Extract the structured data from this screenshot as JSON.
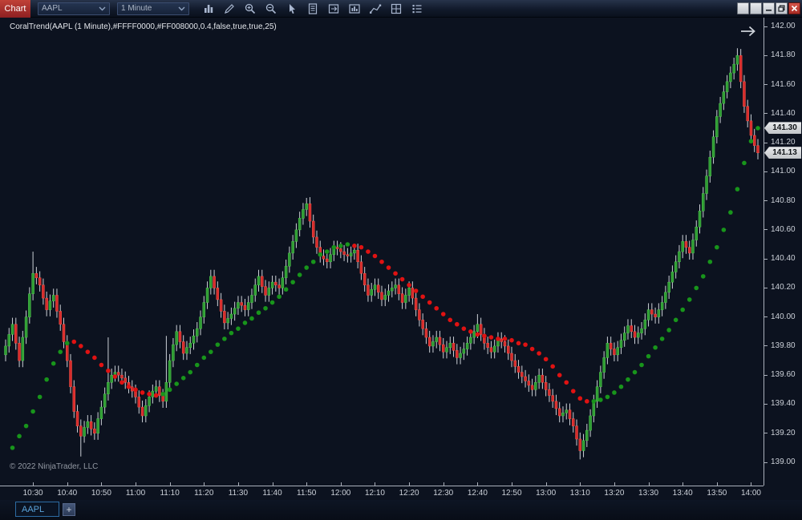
{
  "toolbar": {
    "chart_button_label": "Chart",
    "instrument_value": "AAPL",
    "interval_value": "1 Minute",
    "icons": [
      "bar-type",
      "drawing-tools",
      "zoom-in",
      "zoom-out",
      "cursor",
      "report",
      "chart-trader",
      "chart-window",
      "line-study",
      "properties-grid",
      "list"
    ],
    "window_controls": [
      "blank",
      "blank",
      "minimize",
      "restore",
      "close"
    ]
  },
  "chart": {
    "indicator_label": "CoralTrend(AAPL (1 Minute),#FFFF0000,#FF008000,0.4,false,true,true,25)",
    "copyright": "© 2022 NinjaTrader, LLC",
    "badges": {
      "coral_value": "141.30",
      "last_price": "141.13"
    }
  },
  "tabs": {
    "active_label": "AAPL",
    "add_label": "+"
  },
  "chart_data": {
    "type": "candlestick",
    "symbol": "AAPL",
    "interval": "1 Minute",
    "overlay": "CoralTrend dotted moving average (green rising / red falling)",
    "x_start": "10:22",
    "x_end": "14:02",
    "minutes_per_bar": 1,
    "ylim": [
      139.0,
      142.0
    ],
    "grid": false,
    "legend": false,
    "price_axis_labels": [
      "142.00",
      "141.80",
      "141.60",
      "141.40",
      "141.20",
      "141.00",
      "140.80",
      "140.60",
      "140.40",
      "140.20",
      "140.00",
      "139.80",
      "139.60",
      "139.40",
      "139.20",
      "139.00"
    ],
    "time_axis_labels": [
      "10:30",
      "10:40",
      "10:50",
      "11:00",
      "11:10",
      "11:20",
      "11:30",
      "11:40",
      "11:50",
      "12:00",
      "12:10",
      "12:20",
      "12:30",
      "12:40",
      "12:50",
      "13:00",
      "13:10",
      "13:20",
      "13:30",
      "13:40",
      "13:50",
      "14:00"
    ],
    "first_open": 139.74,
    "closes": [
      139.8,
      139.88,
      139.95,
      139.82,
      139.7,
      139.86,
      140.0,
      140.16,
      140.3,
      140.27,
      140.22,
      140.13,
      140.05,
      140.11,
      140.15,
      140.04,
      139.95,
      139.83,
      139.7,
      139.52,
      139.35,
      139.25,
      139.18,
      139.24,
      139.28,
      139.23,
      139.2,
      139.3,
      139.38,
      139.47,
      139.55,
      139.6,
      139.62,
      139.6,
      139.58,
      139.55,
      139.52,
      139.49,
      139.45,
      139.38,
      139.32,
      139.39,
      139.45,
      139.49,
      139.52,
      139.46,
      139.42,
      139.55,
      139.7,
      139.81,
      139.9,
      139.83,
      139.75,
      139.79,
      139.82,
      139.87,
      139.92,
      140.0,
      140.1,
      140.2,
      140.28,
      140.2,
      140.12,
      140.04,
      139.96,
      139.99,
      140.02,
      140.06,
      140.1,
      140.08,
      140.05,
      140.1,
      140.15,
      140.22,
      140.28,
      140.21,
      140.15,
      140.2,
      140.24,
      140.22,
      140.2,
      140.27,
      140.35,
      140.44,
      140.52,
      140.6,
      140.68,
      140.74,
      140.78,
      140.66,
      140.55,
      140.48,
      140.42,
      140.4,
      140.38,
      140.43,
      140.48,
      140.47,
      140.45,
      140.43,
      140.42,
      140.44,
      140.46,
      140.38,
      140.3,
      140.22,
      140.15,
      140.19,
      140.22,
      140.17,
      140.12,
      140.15,
      140.18,
      140.2,
      140.22,
      140.16,
      140.1,
      140.15,
      140.2,
      140.13,
      140.05,
      139.98,
      139.92,
      139.86,
      139.8,
      139.83,
      139.86,
      139.81,
      139.76,
      139.79,
      139.82,
      139.77,
      139.72,
      139.75,
      139.78,
      139.82,
      139.86,
      139.9,
      139.95,
      139.88,
      139.82,
      139.79,
      139.76,
      139.8,
      139.85,
      139.83,
      139.8,
      139.75,
      139.7,
      139.66,
      139.62,
      139.59,
      139.56,
      139.53,
      139.5,
      139.55,
      139.6,
      139.55,
      139.5,
      139.46,
      139.42,
      139.37,
      139.32,
      139.34,
      139.36,
      139.3,
      139.25,
      139.16,
      139.08,
      139.15,
      139.22,
      139.32,
      139.42,
      139.52,
      139.62,
      139.72,
      139.82,
      139.78,
      139.74,
      139.79,
      139.84,
      139.89,
      139.94,
      139.9,
      139.86,
      139.89,
      139.92,
      139.98,
      140.05,
      140.02,
      140.0,
      140.05,
      140.1,
      140.17,
      140.24,
      140.31,
      140.38,
      140.45,
      140.52,
      140.48,
      140.44,
      140.53,
      140.62,
      140.73,
      140.85,
      140.97,
      141.1,
      141.24,
      141.38,
      141.47,
      141.55,
      141.62,
      141.68,
      141.74,
      141.8,
      141.62,
      141.45,
      141.35,
      141.25,
      141.18,
      141.13
    ],
    "wick_overrides": {
      "8": [
        140.45,
        null
      ],
      "22": [
        null,
        139.04
      ],
      "30": [
        139.86,
        null
      ],
      "47": [
        139.87,
        null
      ],
      "88": [
        140.82,
        null
      ],
      "138": [
        140.02,
        null
      ],
      "168": [
        null,
        139.02
      ],
      "214": [
        141.85,
        null
      ]
    },
    "coral": {
      "start_index": 2,
      "values": [
        139.1,
        139.14,
        139.18,
        139.21,
        139.25,
        139.3,
        139.35,
        139.4,
        139.45,
        139.51,
        139.57,
        139.62,
        139.68,
        139.72,
        139.76,
        139.8,
        139.82,
        139.83,
        139.83,
        139.82,
        139.8,
        139.78,
        139.76,
        139.75,
        139.72,
        139.7,
        139.67,
        139.65,
        139.63,
        139.61,
        139.59,
        139.57,
        139.55,
        139.54,
        139.52,
        139.51,
        139.5,
        139.49,
        139.48,
        139.47,
        139.47,
        139.46,
        139.46,
        139.46,
        139.47,
        139.48,
        139.5,
        139.52,
        139.54,
        139.56,
        139.58,
        139.6,
        139.62,
        139.65,
        139.67,
        139.69,
        139.72,
        139.74,
        139.76,
        139.78,
        139.81,
        139.83,
        139.85,
        139.87,
        139.89,
        139.9,
        139.92,
        139.94,
        139.96,
        139.97,
        139.99,
        140.01,
        140.03,
        140.04,
        140.06,
        140.08,
        140.1,
        140.12,
        140.14,
        140.16,
        140.19,
        140.21,
        140.24,
        140.26,
        140.29,
        140.31,
        140.34,
        140.36,
        140.38,
        140.41,
        140.43,
        140.44,
        140.45,
        140.47,
        140.48,
        140.49,
        140.49,
        140.5,
        140.5,
        140.5,
        140.49,
        140.49,
        140.48,
        140.47,
        140.45,
        140.44,
        140.42,
        140.4,
        140.38,
        140.36,
        140.34,
        140.32,
        140.3,
        140.28,
        140.26,
        140.24,
        140.22,
        140.2,
        140.18,
        140.16,
        140.14,
        140.12,
        140.1,
        140.08,
        140.06,
        140.04,
        140.02,
        140.0,
        139.98,
        139.97,
        139.95,
        139.94,
        139.92,
        139.91,
        139.9,
        139.89,
        139.88,
        139.88,
        139.87,
        139.87,
        139.86,
        139.86,
        139.85,
        139.85,
        139.85,
        139.84,
        139.84,
        139.83,
        139.82,
        139.82,
        139.81,
        139.8,
        139.78,
        139.77,
        139.75,
        139.73,
        139.71,
        139.68,
        139.66,
        139.63,
        139.6,
        139.58,
        139.55,
        139.52,
        139.49,
        139.47,
        139.44,
        139.43,
        139.42,
        139.42,
        139.42,
        139.43,
        139.43,
        139.44,
        139.45,
        139.47,
        139.48,
        139.5,
        139.52,
        139.54,
        139.57,
        139.59,
        139.62,
        139.65,
        139.67,
        139.7,
        139.73,
        139.76,
        139.79,
        139.82,
        139.85,
        139.88,
        139.91,
        139.95,
        139.98,
        140.01,
        140.05,
        140.08,
        140.12,
        140.16,
        140.2,
        140.24,
        140.28,
        140.33,
        140.38,
        140.43,
        140.48,
        140.54,
        140.6,
        140.66,
        140.72,
        140.8,
        140.88,
        140.97,
        141.06,
        141.14,
        141.21,
        141.26,
        141.3
      ],
      "segments": [
        {
          "from": 2,
          "to": 19,
          "color": "up"
        },
        {
          "from": 20,
          "to": 44,
          "color": "down"
        },
        {
          "from": 45,
          "to": 101,
          "color": "up"
        },
        {
          "from": 102,
          "to": 170,
          "color": "down"
        },
        {
          "from": 171,
          "to": 220,
          "color": "up"
        }
      ]
    },
    "colors": {
      "candle_up": "#2f9e33",
      "candle_up_stroke": "#54c554",
      "candle_down": "#d92b2b",
      "candle_down_stroke": "#ef5a4e",
      "wick": "#ccd0d6",
      "coral_up": "#18951b",
      "coral_down": "#e01212",
      "background": "#0c121f",
      "axis": "#aab0ba"
    }
  }
}
